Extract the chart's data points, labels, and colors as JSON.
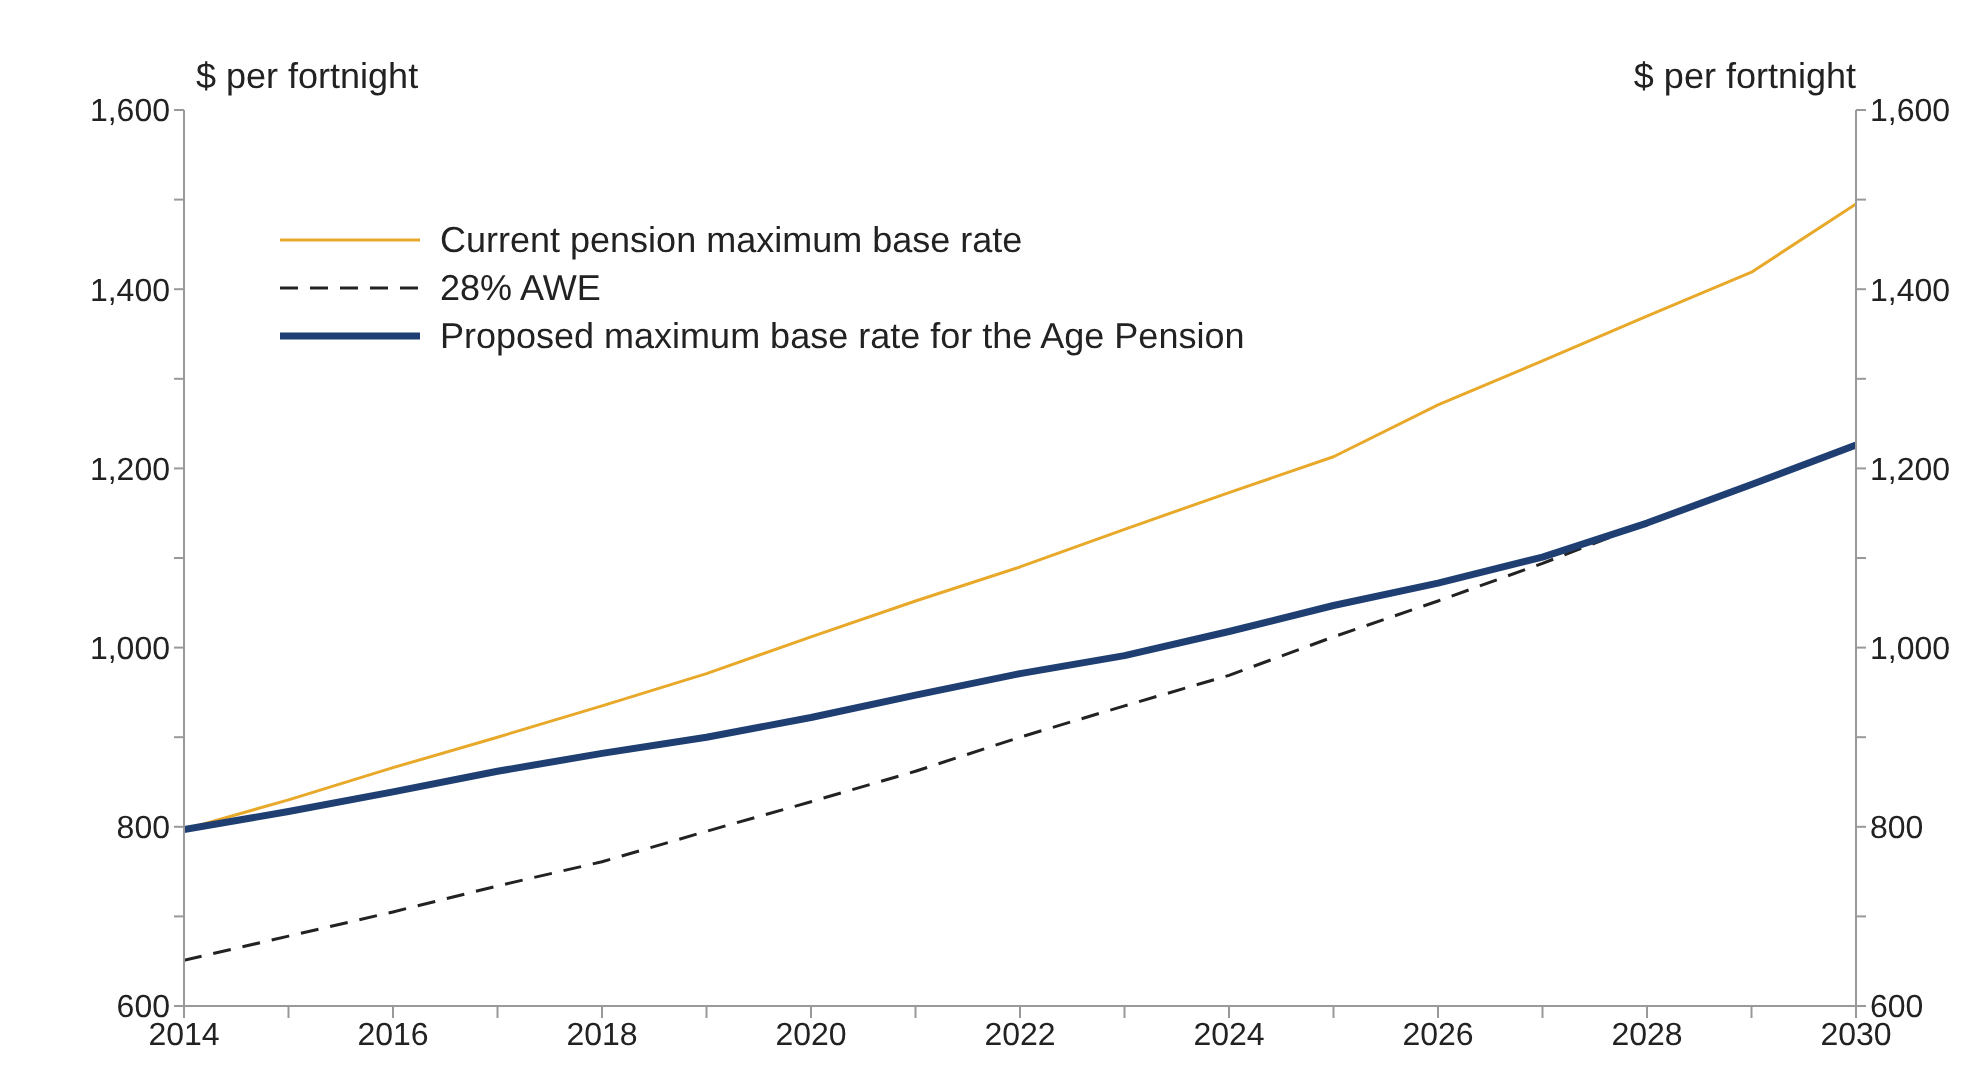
{
  "chart_data": {
    "type": "line",
    "ylabel": "$ per fortnight",
    "y2label": "$ per fortnight",
    "x": [
      2014,
      2015,
      2016,
      2017,
      2018,
      2019,
      2020,
      2021,
      2022,
      2023,
      2024,
      2025,
      2026,
      2027,
      2028,
      2029,
      2030
    ],
    "xlim": [
      2014,
      2030
    ],
    "xticks": [
      2014,
      {
        "value": 2015,
        "label": null
      },
      2016,
      {
        "value": 2017,
        "label": null
      },
      2018,
      {
        "value": 2019,
        "label": null
      },
      2020,
      {
        "value": 2021,
        "label": null
      },
      2022,
      {
        "value": 2023,
        "label": null
      },
      2024,
      {
        "value": 2025,
        "label": null
      },
      2026,
      {
        "value": 2027,
        "label": null
      },
      2028,
      {
        "value": 2029,
        "label": null
      },
      2030
    ],
    "ylim": [
      600,
      1600
    ],
    "yticks": [
      {
        "value": 600,
        "label": "600"
      },
      {
        "value": 700,
        "label": null
      },
      {
        "value": 800,
        "label": "800"
      },
      {
        "value": 900,
        "label": null
      },
      {
        "value": 1000,
        "label": "1,000"
      },
      {
        "value": 1100,
        "label": null
      },
      {
        "value": 1200,
        "label": "1,200"
      },
      {
        "value": 1300,
        "label": null
      },
      {
        "value": 1400,
        "label": "1,400"
      },
      {
        "value": 1500,
        "label": null
      },
      {
        "value": 1600,
        "label": "1,600"
      }
    ],
    "y2lim": [
      600,
      1600
    ],
    "y2ticks": [
      {
        "value": 600,
        "label": "600"
      },
      {
        "value": 700,
        "label": null
      },
      {
        "value": 800,
        "label": "800"
      },
      {
        "value": 900,
        "label": null
      },
      {
        "value": 1000,
        "label": "1,000"
      },
      {
        "value": 1100,
        "label": null
      },
      {
        "value": 1200,
        "label": "1,200"
      },
      {
        "value": 1300,
        "label": null
      },
      {
        "value": 1400,
        "label": "1,400"
      },
      {
        "value": 1500,
        "label": null
      },
      {
        "value": 1600,
        "label": "1,600"
      }
    ],
    "grid": false,
    "legend": "top left",
    "marker": "none",
    "series": [
      {
        "name": "Current pension maximum base rate",
        "color": "#e8a92a",
        "line_style": "solid",
        "values": [
          797,
          830,
          866,
          900,
          935,
          971,
          1012,
          1052,
          1090,
          1132,
          1173,
          1213,
          1271,
          1320,
          1370,
          1419,
          1495
        ]
      },
      {
        "name": "28% AWE",
        "color": "#222222",
        "line_style": "dashed",
        "values": [
          651,
          678,
          705,
          734,
          761,
          795,
          828,
          862,
          900,
          935,
          969,
          1012,
          1052,
          1094,
          1139,
          1182,
          1226
        ]
      },
      {
        "name": "Proposed maximum base rate for the Age Pension",
        "color": "#1f3f73",
        "line_style": "solid",
        "values": [
          797,
          817,
          839,
          862,
          882,
          900,
          922,
          947,
          971,
          991,
          1018,
          1047,
          1072,
          1101,
          1139,
          1182,
          1226
        ]
      }
    ]
  }
}
